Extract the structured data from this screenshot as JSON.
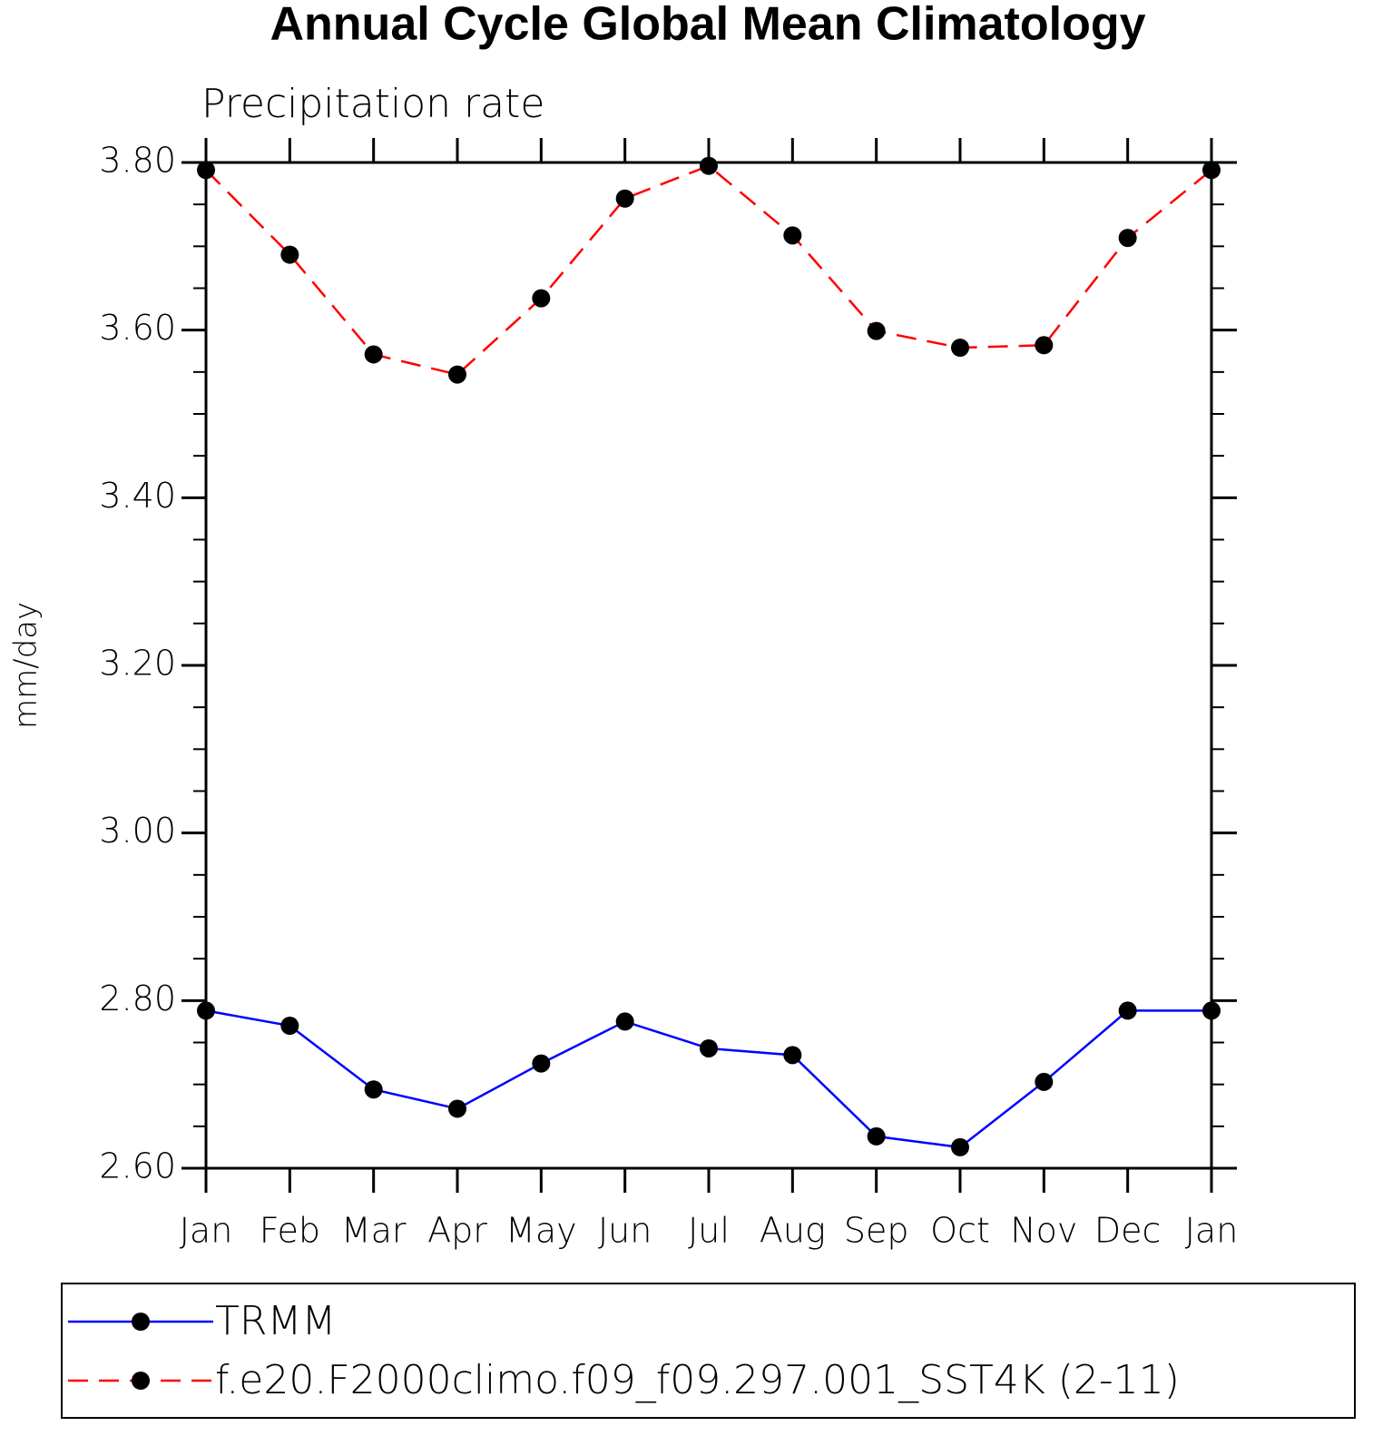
{
  "chart_data": {
    "type": "line",
    "title": "Annual Cycle Global Mean Climatology",
    "subtitle": "Precipitation rate",
    "y_label": "mm/day",
    "categories": [
      "Jan",
      "Feb",
      "Mar",
      "Apr",
      "May",
      "Jun",
      "Jul",
      "Aug",
      "Sep",
      "Oct",
      "Nov",
      "Dec",
      "Jan"
    ],
    "series": [
      {
        "name": "TRMM",
        "color": "#0000ff",
        "line_style": "solid",
        "values": [
          2.788,
          2.77,
          2.694,
          2.671,
          2.725,
          2.775,
          2.743,
          2.735,
          2.638,
          2.625,
          2.703,
          2.788,
          2.788
        ]
      },
      {
        "name": "f.e20.F2000climo.f09_f09.297.001_SST4K (2-11)",
        "color": "#ff0000",
        "line_style": "dashed",
        "values": [
          3.791,
          3.69,
          3.571,
          3.547,
          3.638,
          3.757,
          3.796,
          3.713,
          3.599,
          3.579,
          3.582,
          3.71,
          3.791
        ]
      }
    ],
    "ylim": [
      2.6,
      3.8
    ],
    "yticks": [
      {
        "value": 2.6,
        "label": "2.60"
      },
      {
        "value": 2.8,
        "label": "2.80"
      },
      {
        "value": 3.0,
        "label": "3.00"
      },
      {
        "value": 3.2,
        "label": "3.20"
      },
      {
        "value": 3.4,
        "label": "3.40"
      },
      {
        "value": 3.6,
        "label": "3.60"
      },
      {
        "value": 3.8,
        "label": "3.80"
      }
    ],
    "yminorticks": [
      2.65,
      2.7,
      2.75,
      2.85,
      2.9,
      2.95,
      3.05,
      3.1,
      3.15,
      3.25,
      3.3,
      3.35,
      3.45,
      3.5,
      3.55,
      3.65,
      3.7,
      3.75
    ],
    "marker": "dot",
    "legend": "bottom"
  }
}
